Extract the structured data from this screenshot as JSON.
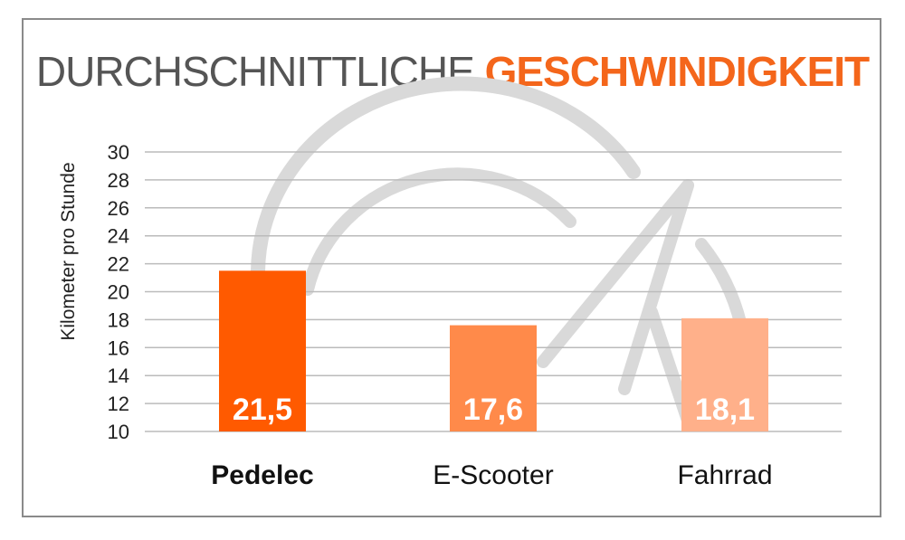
{
  "title": {
    "part1": "DURCHSCHNITTLICHE ",
    "part2": "GESCHWINDIGKEIT"
  },
  "chart_data": {
    "type": "bar",
    "categories": [
      "Pedelec",
      "E-Scooter",
      "Fahrrad"
    ],
    "values": [
      21.5,
      17.6,
      18.1
    ],
    "value_labels": [
      "21,5",
      "17,6",
      "18,1"
    ],
    "bar_colors": [
      "#ff5a00",
      "#ff8a4a",
      "#ffb08a"
    ],
    "highlight_category": "Pedelec",
    "ylabel": "Kilometer pro Stunde",
    "ylim": [
      10,
      30
    ],
    "yticks": [
      10,
      12,
      14,
      16,
      18,
      20,
      22,
      24,
      26,
      28,
      30
    ],
    "grid": true,
    "colors": {
      "title_accent": "#f4661b",
      "title_main": "#555555",
      "grid": "#bbbbbb",
      "watermark": "#d9d9d9"
    },
    "watermark_icon": "speedometer-icon"
  }
}
